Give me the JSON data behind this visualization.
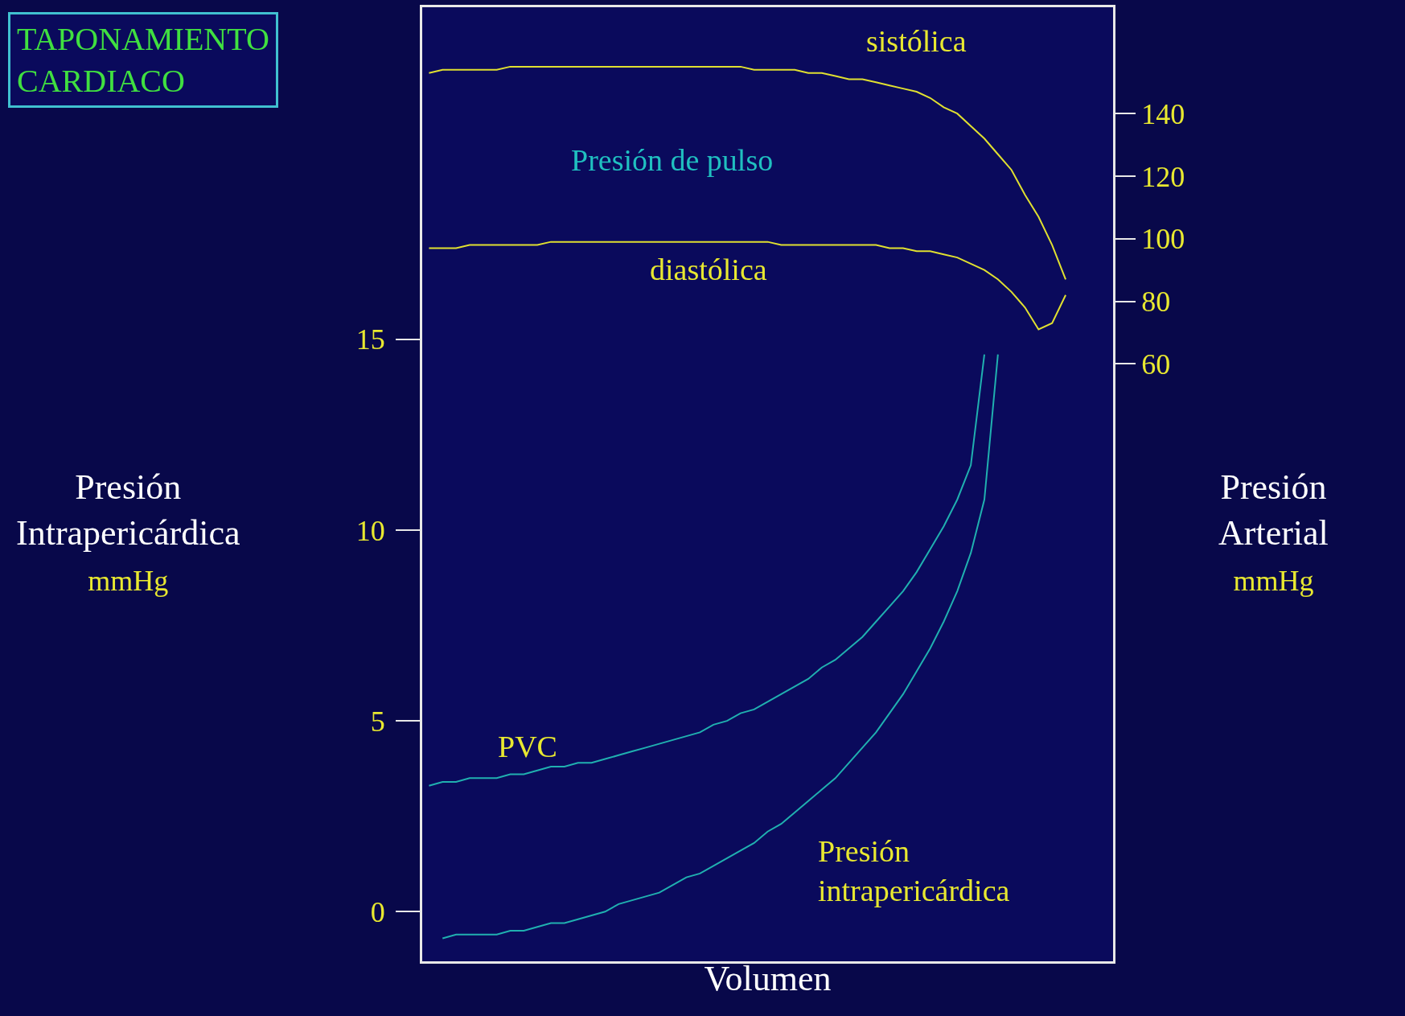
{
  "chart_data": {
    "type": "line",
    "title": "TAPONAMIENTO CARDIACO",
    "xlabel": "Volumen",
    "ylabel": "Presión\nIntrapericárdica\nmmHg",
    "y2label": "Presión\nArterial\nmmHg",
    "categories": [
      null,
      null,
      null,
      null,
      null,
      null,
      null,
      null,
      null,
      null,
      null,
      null,
      null,
      null,
      null,
      null,
      null,
      null,
      null,
      null,
      null,
      null,
      null,
      null,
      null,
      null,
      null,
      null,
      null,
      null,
      null,
      null,
      null,
      null,
      null,
      null,
      null,
      null,
      null,
      null,
      null,
      null,
      null,
      null,
      null,
      null,
      null,
      null,
      null,
      null,
      null
    ],
    "ylim": [
      -1.3,
      23.7
    ],
    "yticks": [
      0,
      5,
      10,
      15
    ],
    "y2lim": [
      -131,
      174
    ],
    "y2ticks": [
      60,
      80,
      100,
      120,
      140
    ],
    "tick_labels": "y",
    "grid": false,
    "marker": "none",
    "line_style": "solid",
    "series": [
      {
        "color": "#e0e030",
        "axis": "y2",
        "values": [
          153,
          154,
          154,
          154,
          154,
          154,
          155,
          155,
          155,
          155,
          155,
          155,
          155,
          155,
          155,
          155,
          155,
          155,
          155,
          155,
          155,
          155,
          155,
          155,
          154,
          154,
          154,
          154,
          153,
          153,
          152,
          151,
          151,
          150,
          149,
          148,
          147,
          145,
          142,
          140,
          136,
          132,
          127,
          122,
          114,
          107,
          98,
          87,
          null,
          null,
          null
        ]
      },
      {
        "color": "#e0e030",
        "axis": "y2",
        "values": [
          97,
          97,
          97,
          98,
          98,
          98,
          98,
          98,
          98,
          99,
          99,
          99,
          99,
          99,
          99,
          99,
          99,
          99,
          99,
          99,
          99,
          99,
          99,
          99,
          99,
          99,
          98,
          98,
          98,
          98,
          98,
          98,
          98,
          98,
          97,
          97,
          96,
          96,
          95,
          94,
          92,
          90,
          87,
          83,
          78,
          71,
          73,
          82,
          null,
          null,
          null
        ]
      },
      {
        "color": "#20b0b0",
        "values": [
          3.3,
          3.4,
          3.4,
          3.5,
          3.5,
          3.5,
          3.6,
          3.6,
          3.7,
          3.8,
          3.8,
          3.9,
          3.9,
          4.0,
          4.1,
          4.2,
          4.3,
          4.4,
          4.5,
          4.6,
          4.7,
          4.9,
          5.0,
          5.2,
          5.3,
          5.5,
          5.7,
          5.9,
          6.1,
          6.4,
          6.6,
          6.9,
          7.2,
          7.6,
          8.0,
          8.4,
          8.9,
          9.5,
          10.1,
          10.8,
          11.7,
          14.6,
          null,
          null,
          null,
          null,
          null,
          null,
          null,
          null,
          null
        ]
      },
      {
        "color": "#20b0b0",
        "values": [
          null,
          -0.7,
          -0.6,
          -0.6,
          -0.6,
          -0.6,
          -0.5,
          -0.5,
          -0.4,
          -0.3,
          -0.3,
          -0.2,
          -0.1,
          0.0,
          0.2,
          0.3,
          0.4,
          0.5,
          0.7,
          0.9,
          1.0,
          1.2,
          1.4,
          1.6,
          1.8,
          2.1,
          2.3,
          2.6,
          2.9,
          3.2,
          3.5,
          3.9,
          4.3,
          4.7,
          5.2,
          5.7,
          6.3,
          6.9,
          7.6,
          8.4,
          9.4,
          10.8,
          14.6,
          null,
          null,
          null,
          null,
          null,
          null,
          null,
          null
        ]
      }
    ],
    "annotations": [
      "sistólica",
      "Presión de pulso",
      "diastólica",
      "PVC",
      "Presión\nintrapericárdica"
    ]
  }
}
